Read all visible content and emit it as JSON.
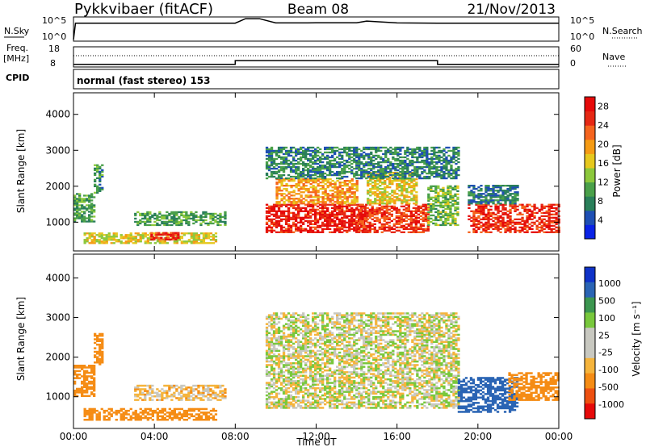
{
  "header": {
    "station": "Pykkvibaer (fitACF)",
    "beam": "Beam 08",
    "date": "21/Nov/2013"
  },
  "top_panels": {
    "nsky_label": "N.Sky",
    "nsky_ticks": [
      "10^5",
      "10^0"
    ],
    "nsearch_label": "N.Search",
    "nsearch_ticks": [
      "10^5",
      "10^0"
    ],
    "freq_label": "Freq.",
    "freq_unit": "[MHz]",
    "freq_ticks": [
      "18",
      "8"
    ],
    "nave_label": "Nave",
    "nave_ticks": [
      "60",
      "0"
    ],
    "cpid_label": "CPID",
    "cpid_text": "normal (fast stereo) 153"
  },
  "colors": {
    "power": [
      "#0a23e6",
      "#1e4fb4",
      "#2a7f5a",
      "#4aa04a",
      "#8cc83c",
      "#e6c81e",
      "#f59b14",
      "#f5641e",
      "#e62814",
      "#e60a0a"
    ],
    "velocity": [
      "#e60a0a",
      "#ee5010",
      "#f58c14",
      "#f5b43c",
      "#c8c8c0",
      "#c8c8c0",
      "#78c83c",
      "#3c9650",
      "#2a64b4",
      "#0f32c8"
    ],
    "gray": "#c8c8c0"
  },
  "chart_data": [
    {
      "type": "line",
      "name": "N.Sky / N.Search",
      "x_unit": "hours UT",
      "x": [
        0,
        0.1,
        2,
        4,
        6,
        8,
        8.5,
        8.9,
        9.2,
        10,
        12,
        14,
        14.5,
        16,
        18,
        20,
        22,
        24
      ],
      "y": [
        1,
        8000,
        8000,
        8000,
        8000,
        8000,
        90000,
        90000,
        90000,
        9000,
        9500,
        10000,
        25000,
        9000,
        8000,
        8000,
        8000,
        8000
      ],
      "ylim": [
        1,
        100000
      ],
      "yscale": "log"
    },
    {
      "type": "line",
      "name": "Freq",
      "x": [
        0,
        8,
        8,
        18,
        18,
        24
      ],
      "y": [
        8.6,
        8.6,
        10.8,
        10.8,
        8.6,
        8.6
      ],
      "ylim": [
        8,
        18
      ],
      "ylabel": "Freq. [MHz]"
    },
    {
      "type": "heatmap",
      "name": "Power",
      "xlabel": "Time UT",
      "ylabel": "Slant Range [km]",
      "xlim": [
        0,
        24
      ],
      "ylim": [
        200,
        4600
      ],
      "xticks": [
        "00:00",
        "04:00",
        "08:00",
        "12:00",
        "16:00",
        "20:00",
        "00:00"
      ],
      "yticks": [
        "1000",
        "2000",
        "3000",
        "4000"
      ],
      "colorbar_label": "Power [dB]",
      "colorbar_ticks": [
        "4",
        "8",
        "12",
        "16",
        "20",
        "24",
        "28"
      ],
      "clim": [
        0,
        30
      ],
      "regions": [
        {
          "t": [
            0.0,
            1.0
          ],
          "r": [
            1000,
            1800
          ],
          "v": 10
        },
        {
          "t": [
            1.0,
            1.4
          ],
          "r": [
            1800,
            2600
          ],
          "v": 9
        },
        {
          "t": [
            0.5,
            7.0
          ],
          "r": [
            400,
            700
          ],
          "v": 16
        },
        {
          "t": [
            3.8,
            5.2
          ],
          "r": [
            500,
            700
          ],
          "v": 26
        },
        {
          "t": [
            3.0,
            7.5
          ],
          "r": [
            900,
            1300
          ],
          "v": 10
        },
        {
          "t": [
            9.5,
            14.5
          ],
          "r": [
            700,
            1500
          ],
          "v": 27
        },
        {
          "t": [
            10.0,
            14.0
          ],
          "r": [
            1500,
            2200
          ],
          "v": 20
        },
        {
          "t": [
            14.0,
            17.5
          ],
          "r": [
            700,
            1500
          ],
          "v": 25
        },
        {
          "t": [
            14.5,
            17.0
          ],
          "r": [
            1500,
            2400
          ],
          "v": 17
        },
        {
          "t": [
            17.5,
            19.0
          ],
          "r": [
            900,
            2000
          ],
          "v": 12
        },
        {
          "t": [
            19.5,
            24.0
          ],
          "r": [
            700,
            1500
          ],
          "v": 26
        },
        {
          "t": [
            19.5,
            22.0
          ],
          "r": [
            1500,
            2000
          ],
          "v": 7
        },
        {
          "t": [
            9.5,
            19.0
          ],
          "r": [
            2200,
            3100
          ],
          "v": 8
        }
      ]
    },
    {
      "type": "heatmap",
      "name": "Velocity",
      "xlabel": "Time UT",
      "ylabel": "Slant Range [km]",
      "xlim": [
        0,
        24
      ],
      "ylim": [
        200,
        4600
      ],
      "xticks": [
        "00:00",
        "04:00",
        "08:00",
        "12:00",
        "16:00",
        "20:00",
        "00:00"
      ],
      "yticks": [
        "1000",
        "2000",
        "3000",
        "4000"
      ],
      "colorbar_label": "Velocity [m s^-1]",
      "colorbar_ticks": [
        "1000",
        "500",
        "100",
        "25",
        "-25",
        "-100",
        "-500",
        "-1000"
      ],
      "regions": [
        {
          "t": [
            0.0,
            1.0
          ],
          "r": [
            1000,
            1800
          ],
          "v": -300
        },
        {
          "t": [
            1.0,
            1.4
          ],
          "r": [
            1800,
            2600
          ],
          "v": -200
        },
        {
          "t": [
            0.5,
            7.0
          ],
          "r": [
            400,
            700
          ],
          "v": -400
        },
        {
          "t": [
            3.0,
            7.5
          ],
          "r": [
            900,
            1300
          ],
          "v": -50
        },
        {
          "t": [
            9.5,
            19.0
          ],
          "r": [
            700,
            3100
          ],
          "v": 0
        },
        {
          "t": [
            19.0,
            22.0
          ],
          "r": [
            600,
            1500
          ],
          "v": 800
        },
        {
          "t": [
            21.5,
            24.0
          ],
          "r": [
            900,
            1600
          ],
          "v": -300
        }
      ]
    }
  ]
}
